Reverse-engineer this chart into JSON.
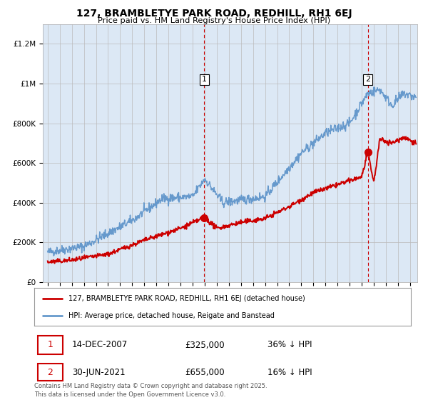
{
  "title": "127, BRAMBLETYE PARK ROAD, REDHILL, RH1 6EJ",
  "subtitle": "Price paid vs. HM Land Registry's House Price Index (HPI)",
  "ylim": [
    0,
    1300000
  ],
  "yticks": [
    0,
    200000,
    400000,
    600000,
    800000,
    1000000,
    1200000
  ],
  "ytick_labels": [
    "£0",
    "£200K",
    "£400K",
    "£600K",
    "£800K",
    "£1M",
    "£1.2M"
  ],
  "transaction1_date": 2007.97,
  "transaction1_price": 325000,
  "transaction2_date": 2021.5,
  "transaction2_price": 655000,
  "legend_red": "127, BRAMBLETYE PARK ROAD, REDHILL, RH1 6EJ (detached house)",
  "legend_blue": "HPI: Average price, detached house, Reigate and Banstead",
  "note1_date": "14-DEC-2007",
  "note1_price": "£325,000",
  "note1_hpi": "36% ↓ HPI",
  "note2_date": "30-JUN-2021",
  "note2_price": "£655,000",
  "note2_hpi": "16% ↓ HPI",
  "footer": "Contains HM Land Registry data © Crown copyright and database right 2025.\nThis data is licensed under the Open Government Licence v3.0.",
  "red_color": "#cc0000",
  "blue_color": "#6699cc",
  "bg_color": "#dce8f5",
  "grid_color": "#bbbbbb"
}
